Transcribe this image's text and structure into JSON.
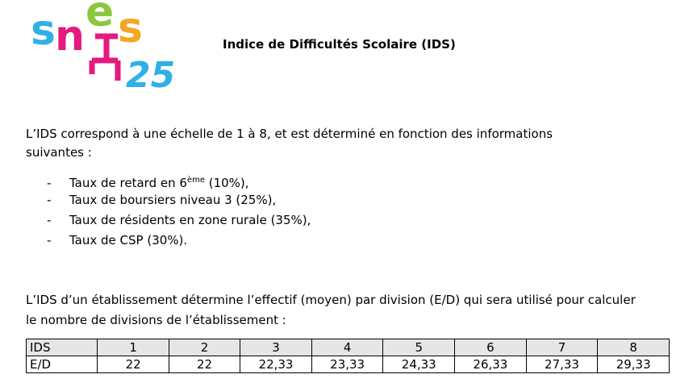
{
  "logo": {
    "letters": [
      "s",
      "n",
      "e",
      "s"
    ],
    "number": "25"
  },
  "header": {
    "title": "Indice de Difficultés Scolaire (IDS)"
  },
  "intro": "L’IDS correspond à une échelle de 1 à 8, et est déterminé en fonction des informations suivantes :",
  "list": {
    "bullet": "-",
    "items": [
      {
        "before": "Taux de retard en 6",
        "sup": "ème",
        "after": " (10%),"
      },
      {
        "text": "Taux de boursiers niveau 3 (25%),"
      },
      {
        "text": "Taux de résidents en zone rurale (35%),"
      },
      {
        "text": "Taux de CSP (30%)."
      }
    ]
  },
  "paragraph": "L’IDS d’un établissement détermine l’effectif (moyen) par division (E/D) qui sera utilisé pour calculer le nombre de divisions de l’établissement :",
  "table": {
    "rows": [
      [
        "IDS",
        "1",
        "2",
        "3",
        "4",
        "5",
        "6",
        "7",
        "8"
      ],
      [
        "E/D",
        "22",
        "22",
        "22,33",
        "23,33",
        "24,33",
        "26,33",
        "27,33",
        "29,33"
      ]
    ]
  }
}
